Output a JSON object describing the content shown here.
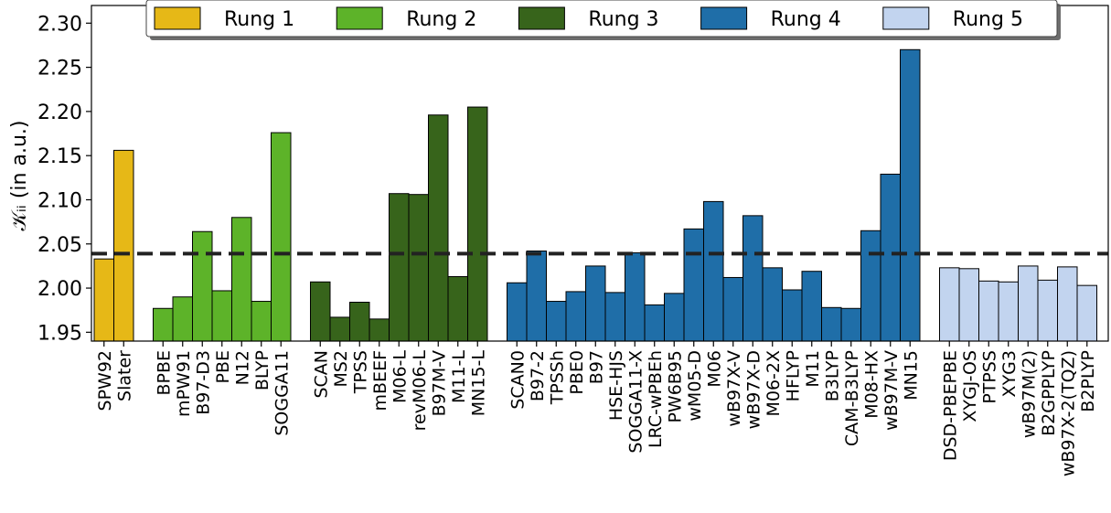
{
  "chart_data": {
    "type": "bar",
    "ylabel": "𝒦ᵢᵢ (in a.u.)",
    "ylim": [
      1.94,
      2.32
    ],
    "yticks": [
      1.95,
      2.0,
      2.05,
      2.1,
      2.15,
      2.2,
      2.25,
      2.3
    ],
    "ytick_labels": [
      "1.95",
      "2.00",
      "2.05",
      "2.10",
      "2.15",
      "2.20",
      "2.25",
      "2.30"
    ],
    "reference_line": 2.039,
    "legend_position": "top-center",
    "colors": {
      "Rung 1": "#e6b817",
      "Rung 2": "#5db329",
      "Rung 3": "#37641b",
      "Rung 4": "#1f6ea8",
      "Rung 5": "#c2d4ef"
    },
    "series": [
      {
        "name": "Rung 1",
        "categories": [
          "SPW92",
          "Slater"
        ],
        "values": [
          2.033,
          2.156
        ]
      },
      {
        "name": "Rung 2",
        "categories": [
          "BPBE",
          "mPW91",
          "B97-D3",
          "PBE",
          "N12",
          "BLYP",
          "SOGGA11"
        ],
        "values": [
          1.977,
          1.99,
          2.064,
          1.997,
          2.08,
          1.985,
          2.176
        ]
      },
      {
        "name": "Rung 3",
        "categories": [
          "SCAN",
          "MS2",
          "TPSS",
          "mBEEF",
          "M06-L",
          "revM06-L",
          "B97M-V",
          "M11-L",
          "MN15-L"
        ],
        "values": [
          2.007,
          1.967,
          1.984,
          1.965,
          2.107,
          2.106,
          2.196,
          2.013,
          2.205
        ]
      },
      {
        "name": "Rung 4",
        "categories": [
          "SCAN0",
          "B97-2",
          "TPSSh",
          "PBE0",
          "B97",
          "HSE-HJS",
          "SOGGA11-X",
          "LRC-wPBEh",
          "PW6B95",
          "wM05-D",
          "M06",
          "wB97X-V",
          "wB97X-D",
          "M06-2X",
          "HFLYP",
          "M11",
          "B3LYP",
          "CAM-B3LYP",
          "M08-HX",
          "wB97M-V",
          "MN15"
        ],
        "values": [
          2.006,
          2.042,
          1.985,
          1.996,
          2.025,
          1.995,
          2.04,
          1.981,
          1.994,
          2.067,
          2.098,
          2.012,
          2.082,
          2.023,
          1.998,
          2.019,
          1.978,
          1.977,
          2.065,
          2.129,
          2.27
        ]
      },
      {
        "name": "Rung 5",
        "categories": [
          "DSD-PBEPBE",
          "XYGJ-OS",
          "PTPSS",
          "XYG3",
          "wB97M(2)",
          "B2GPPLYP",
          "wB97X-2(TQZ)",
          "B2PLYP"
        ],
        "values": [
          2.023,
          2.022,
          2.008,
          2.007,
          2.025,
          2.009,
          2.024,
          2.003
        ]
      }
    ]
  }
}
